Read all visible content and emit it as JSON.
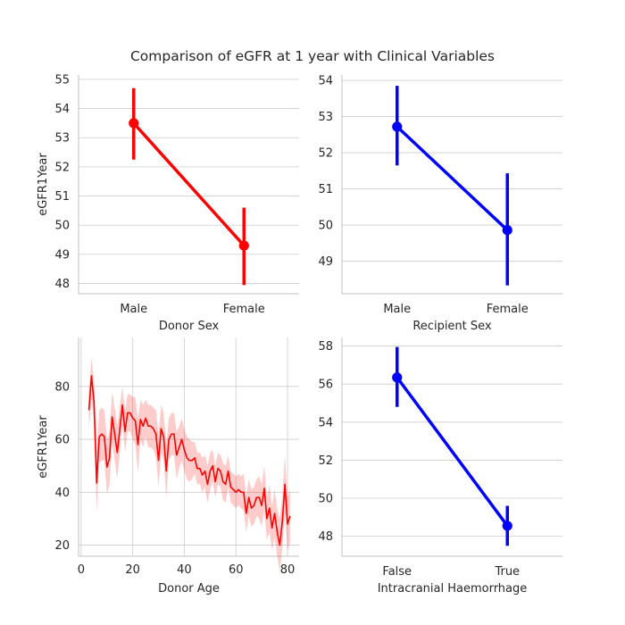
{
  "figure": {
    "title": "Comparison of eGFR at 1 year with Clinical Variables"
  },
  "colors": {
    "red": "#ff0000",
    "blue": "#0000ff",
    "band": "#ff0000",
    "grid": "#cccccc"
  },
  "chart_data": [
    {
      "id": "donor-sex",
      "type": "point",
      "color": "red",
      "categories": [
        "Male",
        "Female"
      ],
      "values": [
        53.5,
        49.3
      ],
      "ci": [
        [
          52.25,
          54.7
        ],
        [
          47.95,
          50.6
        ]
      ],
      "xlabel": "Donor Sex",
      "ylabel": "eGFR1Year",
      "ylim": [
        47.65,
        55.15
      ],
      "yticks": [
        48,
        49,
        50,
        51,
        52,
        53,
        54,
        55
      ],
      "grid": true
    },
    {
      "id": "recipient-sex",
      "type": "point",
      "color": "blue",
      "categories": [
        "Male",
        "Female"
      ],
      "values": [
        52.72,
        49.86
      ],
      "ci": [
        [
          51.65,
          53.85
        ],
        [
          48.33,
          51.43
        ]
      ],
      "xlabel": "Recipient Sex",
      "ylabel": "",
      "ylim": [
        48.1,
        54.15
      ],
      "yticks": [
        49,
        50,
        51,
        52,
        53,
        54
      ],
      "grid": true
    },
    {
      "id": "donor-age",
      "type": "line",
      "color": "red",
      "series": [
        {
          "x": [
            3,
            4,
            5,
            6,
            7,
            8,
            9,
            10,
            11,
            12,
            13,
            14,
            15,
            16,
            17,
            18,
            19,
            20,
            21,
            22,
            23,
            24,
            25,
            26,
            27,
            28,
            29,
            30,
            31,
            32,
            33,
            34,
            35,
            36,
            37,
            38,
            39,
            40,
            41,
            42,
            43,
            44,
            45,
            46,
            47,
            48,
            49,
            50,
            51,
            52,
            53,
            54,
            55,
            56,
            57,
            58,
            59,
            60,
            61,
            62,
            63,
            64,
            65,
            66,
            67,
            68,
            69,
            70,
            71,
            72,
            73,
            74,
            75,
            76,
            77,
            78,
            79,
            80,
            81
          ],
          "y": [
            71,
            84,
            74,
            43.5,
            61,
            62,
            61,
            49.5,
            53,
            68.5,
            62,
            55,
            64,
            73,
            63,
            70,
            70,
            68,
            67,
            58,
            67.5,
            65,
            68,
            65,
            65,
            64,
            62,
            52,
            64,
            61,
            48,
            60,
            62,
            62,
            54,
            57,
            60,
            56,
            53,
            52,
            52,
            53,
            49,
            49,
            46.5,
            48,
            43,
            48,
            50,
            44,
            49,
            48,
            44,
            43,
            48,
            42,
            41,
            40,
            41,
            40,
            40,
            32,
            38,
            34,
            35,
            38,
            38,
            35,
            41.5,
            30,
            34,
            26.5,
            32,
            25,
            20,
            29,
            43,
            28,
            31
          ],
          "lower": [
            64,
            75,
            66,
            32.5,
            51,
            52,
            52,
            39.5,
            43,
            59,
            52,
            45,
            55,
            66,
            55,
            63,
            63,
            60,
            58,
            47.5,
            60,
            57,
            61,
            57,
            57,
            56,
            53,
            42,
            55,
            52,
            38,
            52,
            54,
            54,
            45,
            49,
            52,
            48,
            45,
            44,
            45,
            47,
            43,
            43,
            40,
            42,
            36,
            41,
            44,
            38,
            43,
            42,
            37,
            36,
            42,
            36,
            35,
            34,
            35,
            34,
            33,
            25,
            31,
            27,
            28,
            31,
            30,
            27,
            33,
            22,
            25,
            18,
            23,
            16,
            10,
            19,
            32,
            18,
            21
          ],
          "upper": [
            78,
            91,
            82,
            55,
            71,
            72,
            71,
            60,
            63,
            78,
            72,
            65,
            73,
            80,
            71,
            77,
            77,
            76,
            76,
            68,
            75,
            73,
            75,
            73,
            73,
            72,
            71,
            62,
            73,
            70,
            58,
            68,
            70,
            70,
            63,
            65,
            68,
            64,
            61,
            60,
            59,
            59,
            55,
            55,
            53,
            54,
            50,
            55,
            56,
            50,
            55,
            54,
            51,
            50,
            54,
            48,
            47,
            46,
            47,
            46,
            47,
            39,
            45,
            41,
            42,
            45,
            46,
            43,
            50,
            38,
            43,
            35,
            41,
            34,
            30,
            39,
            54,
            38,
            41
          ]
        }
      ],
      "xlabel": "Donor Age",
      "ylabel": "eGFR1Year",
      "xlim": [
        -1,
        84.5
      ],
      "ylim": [
        15.8,
        98.5
      ],
      "xticks": [
        0,
        20,
        40,
        60,
        80
      ],
      "yticks": [
        20,
        40,
        60,
        80
      ],
      "grid": true
    },
    {
      "id": "ich",
      "type": "point",
      "color": "blue",
      "categories": [
        "False",
        "True"
      ],
      "values": [
        56.35,
        48.55
      ],
      "ci": [
        [
          54.8,
          57.95
        ],
        [
          47.5,
          49.6
        ]
      ],
      "xlabel": "Intracranial Haemorrhage",
      "ylabel": "",
      "ylim": [
        46.95,
        58.45
      ],
      "yticks": [
        48,
        50,
        52,
        54,
        56,
        58
      ],
      "grid": true
    }
  ]
}
